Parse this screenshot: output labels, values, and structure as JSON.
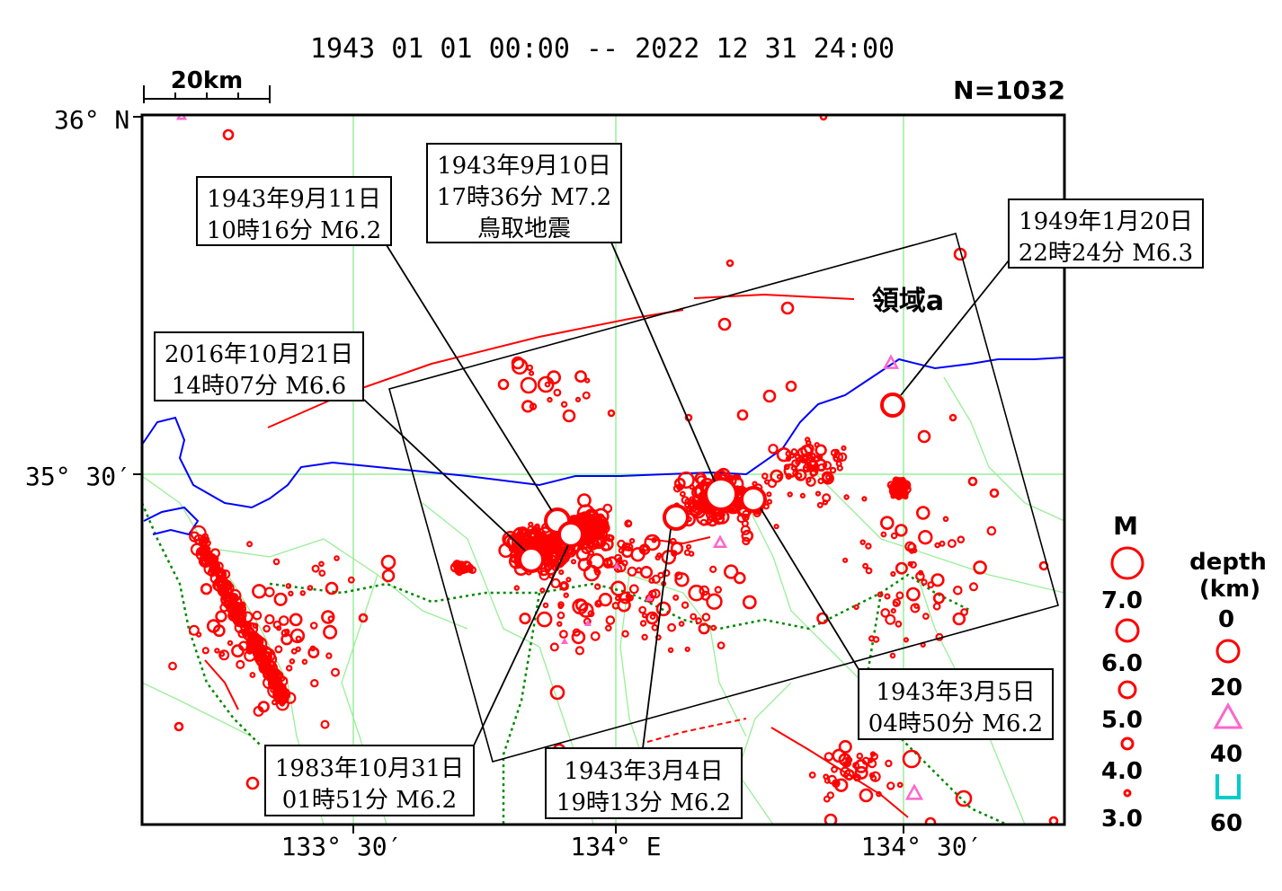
{
  "header": {
    "period": "1943 01 01 00:00 -- 2022 12 31 24:00",
    "count": "N=1032",
    "scale_label": "20km"
  },
  "axes": {
    "lat_top": "36° N",
    "lat_mid": "35° 30′",
    "lon_1": "133° 30′",
    "lon_2": "134° E",
    "lon_3": "134° 30′"
  },
  "region_label": "領域a",
  "annotations": [
    {
      "line1": "1943年9月10日",
      "line2": "17時36分 M7.2",
      "line3": "鳥取地震"
    },
    {
      "line1": "1943年9月11日",
      "line2": "10時16分 M6.2"
    },
    {
      "line1": "1949年1月20日",
      "line2": "22時24分 M6.3"
    },
    {
      "line1": "2016年10月21日",
      "line2": "14時07分 M6.6"
    },
    {
      "line1": "1943年3月5日",
      "line2": "04時50分 M6.2"
    },
    {
      "line1": "1983年10月31日",
      "line2": "01時51分 M6.2"
    },
    {
      "line1": "1943年3月4日",
      "line2": "19時13分 M6.2"
    }
  ],
  "legend": {
    "mag_title": "M",
    "mag_values": [
      "7.0",
      "6.0",
      "5.0",
      "4.0",
      "3.0"
    ],
    "depth_title": "depth",
    "depth_unit": "(km)",
    "depth_values": [
      "0",
      "20",
      "40",
      "60"
    ]
  },
  "colors": {
    "shallow": "#ff0000",
    "mid": "#ff66cc",
    "deep": "#00cccc",
    "coast": "#0000ff",
    "grid": "#99ee99",
    "border": "#008800",
    "fault": "#ff0000"
  }
}
